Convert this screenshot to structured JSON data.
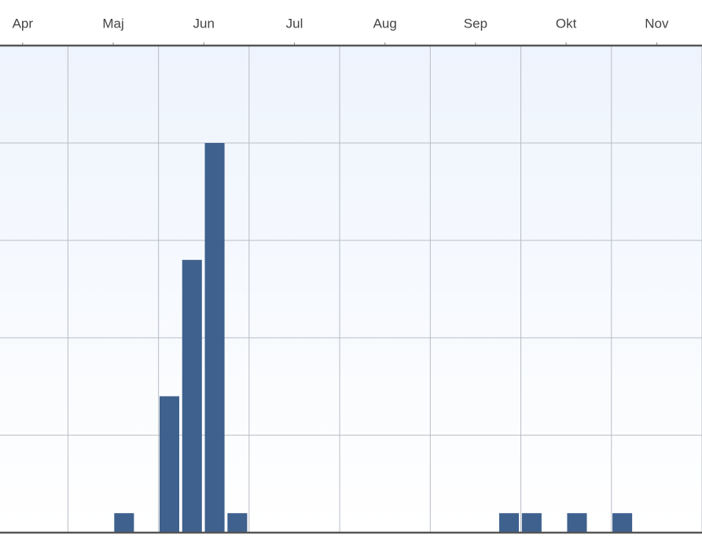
{
  "chart_data": {
    "type": "bar",
    "x": [
      5.12,
      5.62,
      5.87,
      6.12,
      6.37,
      9.37,
      9.62,
      10.12,
      10.62
    ],
    "values": [
      1,
      7,
      14,
      20,
      1,
      1,
      1,
      1,
      1
    ],
    "color": "#3a5e8c",
    "xlim": [
      3.75,
      11.5
    ],
    "xticks": [
      {
        "value": 4,
        "label": "Apr"
      },
      {
        "value": 5,
        "label": "Maj"
      },
      {
        "value": 6,
        "label": "Jun"
      },
      {
        "value": 7,
        "label": "Jul"
      },
      {
        "value": 8,
        "label": "Aug"
      },
      {
        "value": 9,
        "label": "Sep"
      },
      {
        "value": 10,
        "label": "Okt"
      },
      {
        "value": 11,
        "label": "Nov"
      }
    ],
    "ylim": [
      0,
      25
    ],
    "yticks": [
      0,
      5,
      10,
      15,
      20,
      25
    ],
    "grid": true
  }
}
